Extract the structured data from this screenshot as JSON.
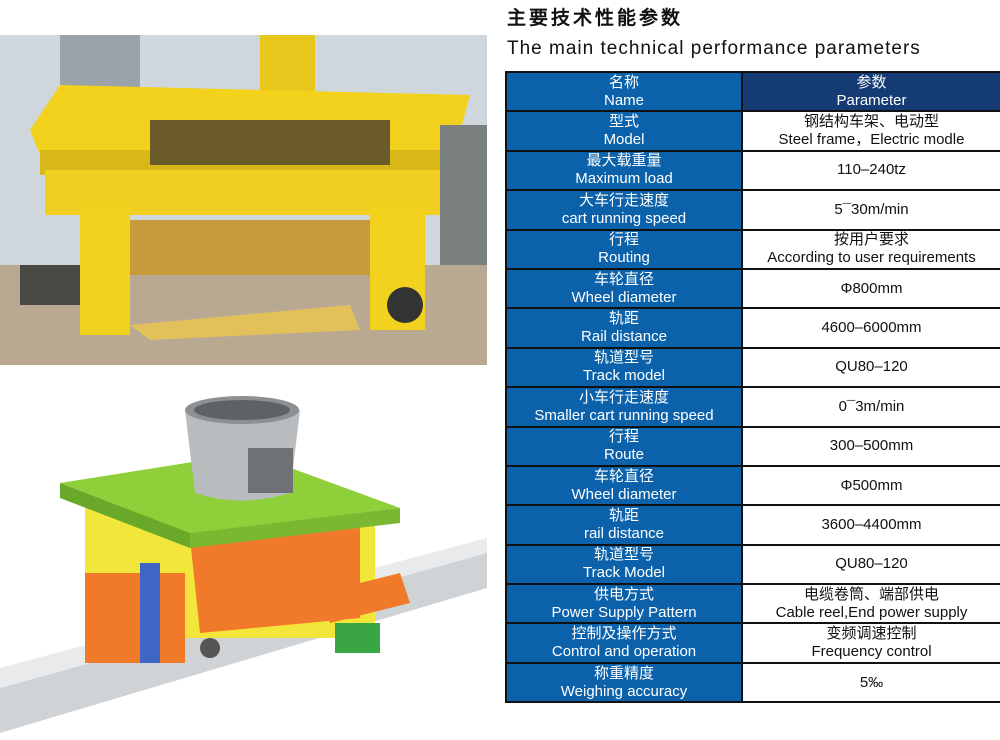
{
  "heading": {
    "cn": "主要技术性能参数",
    "en": "The main technical performance parameters"
  },
  "table": {
    "header": {
      "name_cn": "名称",
      "name_en": "Name",
      "param_cn": "参数",
      "param_en": "Parameter"
    },
    "rows": [
      {
        "cn": "型式",
        "en": "Model",
        "v1": "钢结构车架、电动型",
        "v2": "Steel frame，Electric modle"
      },
      {
        "cn": "最大载重量",
        "en": "Maximum load",
        "v1": "110–240tz",
        "v2": ""
      },
      {
        "cn": "大车行走速度",
        "en": "cart running speed",
        "v1": "5¯30m/min",
        "v2": ""
      },
      {
        "cn": "行程",
        "en": "Routing",
        "v1": "按用户要求",
        "v2": "According to user requirements"
      },
      {
        "cn": "车轮直径",
        "en": "Wheel diameter",
        "v1": "Φ800mm",
        "v2": ""
      },
      {
        "cn": "轨距",
        "en": "Rail distance",
        "v1": "4600–6000mm",
        "v2": ""
      },
      {
        "cn": "轨道型号",
        "en": "Track model",
        "v1": "QU80–120",
        "v2": ""
      },
      {
        "cn": "小车行走速度",
        "en": "Smaller cart running speed",
        "v1": "0¯3m/min",
        "v2": ""
      },
      {
        "cn": "行程",
        "en": "Route",
        "v1": "300–500mm",
        "v2": ""
      },
      {
        "cn": "车轮直径",
        "en": "Wheel diameter",
        "v1": "Φ500mm",
        "v2": ""
      },
      {
        "cn": "轨距",
        "en": "rail distance",
        "v1": "3600–4400mm",
        "v2": ""
      },
      {
        "cn": "轨道型号",
        "en": "Track Model",
        "v1": "QU80–120",
        "v2": ""
      },
      {
        "cn": "供电方式",
        "en": "Power Supply Pattern",
        "v1": "电缆卷筒、端部供电",
        "v2": "Cable reel,End power supply"
      },
      {
        "cn": "控制及操作方式",
        "en": "Control and operation",
        "v1": "变频调速控制",
        "v2": "Frequency control"
      },
      {
        "cn": "称重精度",
        "en": "Weighing accuracy",
        "v1": "5‰",
        "v2": ""
      }
    ]
  },
  "colors": {
    "name_column": "#0b62ab",
    "header_param": "#143b74",
    "machine_yellow": "#f2d21c",
    "model_green": "#8fcf3a",
    "model_orange": "#f07a2a"
  }
}
